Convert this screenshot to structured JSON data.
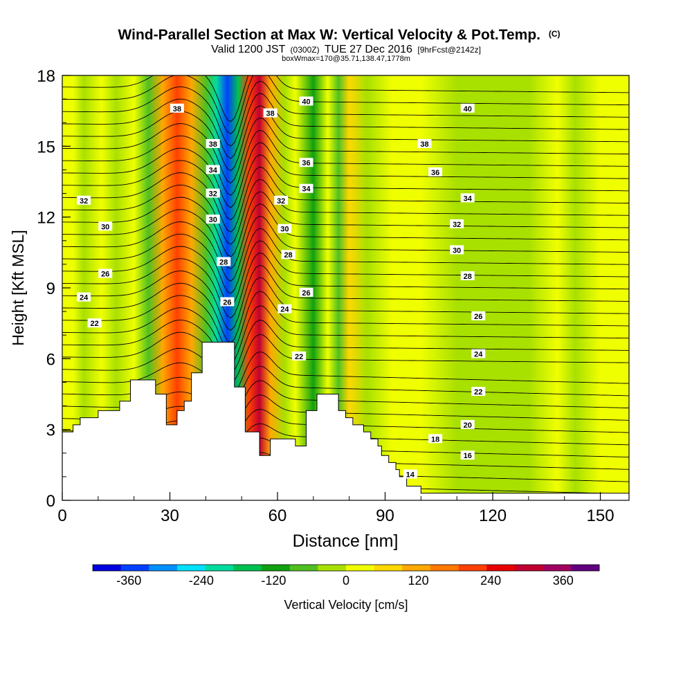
{
  "header": {
    "title": "Wind-Parallel Section at Max W: Vertical Velocity & Pot.Temp.",
    "title_suffix": "(C)",
    "valid_main": "Valid 1200 JST",
    "valid_utc": "(0300Z)",
    "valid_date": "TUE 27 Dec 2016",
    "valid_fcst": "[9hrFcst@2142z]",
    "box_info": "boxWmax=170@35.71,138.47,1778m"
  },
  "chart_data": {
    "type": "heatmap",
    "xlabel": "Distance [nm]",
    "ylabel": "Height [Kft MSL]",
    "xlim": [
      0,
      158
    ],
    "ylim": [
      0,
      18
    ],
    "x_ticks": [
      0,
      30,
      60,
      90,
      120,
      150
    ],
    "y_ticks": [
      0,
      3,
      6,
      9,
      12,
      15,
      18
    ],
    "colorbar": {
      "label": "Vertical Velocity [cm/s]",
      "ticks": [
        -360,
        -240,
        -120,
        0,
        120,
        240,
        360
      ],
      "colors": [
        "#0000e0",
        "#0040ff",
        "#0090ff",
        "#00e0ff",
        "#00dca0",
        "#00c050",
        "#10a010",
        "#50c020",
        "#a8e000",
        "#f0ff00",
        "#ffd800",
        "#ffa800",
        "#ff7800",
        "#ff4000",
        "#e80000",
        "#c00030",
        "#a00060",
        "#600080"
      ]
    },
    "velocity_columns": [
      {
        "x": 0,
        "w": 40
      },
      {
        "x": 3,
        "w": 30
      },
      {
        "x": 6,
        "w": -30
      },
      {
        "x": 11,
        "w": 20
      },
      {
        "x": 15,
        "w": -40
      },
      {
        "x": 20,
        "w": 40
      },
      {
        "x": 24,
        "w": -50
      },
      {
        "x": 28,
        "w": 120
      },
      {
        "x": 32,
        "w": 200
      },
      {
        "x": 36,
        "w": 130
      },
      {
        "x": 40,
        "w": -60
      },
      {
        "x": 43,
        "w": -190
      },
      {
        "x": 46,
        "w": -360
      },
      {
        "x": 49,
        "w": -150
      },
      {
        "x": 52,
        "w": 220
      },
      {
        "x": 55,
        "w": 280
      },
      {
        "x": 58,
        "w": 120
      },
      {
        "x": 62,
        "w": -40
      },
      {
        "x": 65,
        "w": 40
      },
      {
        "x": 70,
        "w": -120
      },
      {
        "x": 74,
        "w": 10
      },
      {
        "x": 77,
        "w": -60
      },
      {
        "x": 80,
        "w": 60
      },
      {
        "x": 85,
        "w": -30
      },
      {
        "x": 92,
        "w": 20
      },
      {
        "x": 100,
        "w": 10
      },
      {
        "x": 110,
        "w": -10
      },
      {
        "x": 120,
        "w": -20
      },
      {
        "x": 130,
        "w": -20
      },
      {
        "x": 138,
        "w": 10
      },
      {
        "x": 143,
        "w": -30
      },
      {
        "x": 150,
        "w": 30
      },
      {
        "x": 158,
        "w": 20
      }
    ],
    "terrain": [
      {
        "x": 0,
        "h": 2.9
      },
      {
        "x": 3,
        "h": 2.9
      },
      {
        "x": 3,
        "h": 3.2
      },
      {
        "x": 5,
        "h": 3.2
      },
      {
        "x": 5,
        "h": 3.5
      },
      {
        "x": 10,
        "h": 3.5
      },
      {
        "x": 10,
        "h": 3.8
      },
      {
        "x": 16,
        "h": 3.8
      },
      {
        "x": 16,
        "h": 4.2
      },
      {
        "x": 19,
        "h": 4.2
      },
      {
        "x": 19,
        "h": 5.1
      },
      {
        "x": 26,
        "h": 5.1
      },
      {
        "x": 26,
        "h": 4.5
      },
      {
        "x": 29,
        "h": 4.5
      },
      {
        "x": 29,
        "h": 3.2
      },
      {
        "x": 32,
        "h": 3.2
      },
      {
        "x": 32,
        "h": 3.8
      },
      {
        "x": 34,
        "h": 3.8
      },
      {
        "x": 34,
        "h": 4.2
      },
      {
        "x": 36,
        "h": 4.2
      },
      {
        "x": 36,
        "h": 5.4
      },
      {
        "x": 39,
        "h": 5.4
      },
      {
        "x": 39,
        "h": 6.7
      },
      {
        "x": 48,
        "h": 6.7
      },
      {
        "x": 48,
        "h": 4.8
      },
      {
        "x": 51,
        "h": 4.8
      },
      {
        "x": 51,
        "h": 2.9
      },
      {
        "x": 55,
        "h": 2.9
      },
      {
        "x": 55,
        "h": 1.9
      },
      {
        "x": 58,
        "h": 1.9
      },
      {
        "x": 58,
        "h": 2.6
      },
      {
        "x": 65,
        "h": 2.6
      },
      {
        "x": 65,
        "h": 2.3
      },
      {
        "x": 68,
        "h": 2.3
      },
      {
        "x": 68,
        "h": 3.8
      },
      {
        "x": 71,
        "h": 3.8
      },
      {
        "x": 71,
        "h": 4.5
      },
      {
        "x": 77,
        "h": 4.5
      },
      {
        "x": 77,
        "h": 3.8
      },
      {
        "x": 79,
        "h": 3.8
      },
      {
        "x": 79,
        "h": 3.5
      },
      {
        "x": 81,
        "h": 3.5
      },
      {
        "x": 81,
        "h": 3.2
      },
      {
        "x": 84,
        "h": 3.2
      },
      {
        "x": 84,
        "h": 2.9
      },
      {
        "x": 86,
        "h": 2.9
      },
      {
        "x": 86,
        "h": 2.6
      },
      {
        "x": 88,
        "h": 2.6
      },
      {
        "x": 88,
        "h": 2.3
      },
      {
        "x": 89,
        "h": 2.3
      },
      {
        "x": 89,
        "h": 1.9
      },
      {
        "x": 91,
        "h": 1.9
      },
      {
        "x": 91,
        "h": 1.6
      },
      {
        "x": 93,
        "h": 1.6
      },
      {
        "x": 93,
        "h": 1.3
      },
      {
        "x": 94,
        "h": 1.3
      },
      {
        "x": 94,
        "h": 1.0
      },
      {
        "x": 96,
        "h": 1.0
      },
      {
        "x": 96,
        "h": 0.6
      },
      {
        "x": 100,
        "h": 0.6
      },
      {
        "x": 100,
        "h": 0.3
      },
      {
        "x": 158,
        "h": 0.3
      }
    ],
    "isentrope_labels": [
      {
        "text": "38",
        "x": 32,
        "y": 16.6
      },
      {
        "text": "38",
        "x": 58,
        "y": 16.4
      },
      {
        "text": "40",
        "x": 68,
        "y": 16.9
      },
      {
        "text": "40",
        "x": 113,
        "y": 16.6
      },
      {
        "text": "38",
        "x": 42,
        "y": 15.1
      },
      {
        "text": "38",
        "x": 101,
        "y": 15.1
      },
      {
        "text": "36",
        "x": 68,
        "y": 14.3
      },
      {
        "text": "36",
        "x": 104,
        "y": 13.9
      },
      {
        "text": "34",
        "x": 42,
        "y": 14.0
      },
      {
        "text": "34",
        "x": 68,
        "y": 13.2
      },
      {
        "text": "34",
        "x": 113,
        "y": 12.8
      },
      {
        "text": "32",
        "x": 6,
        "y": 12.7
      },
      {
        "text": "32",
        "x": 42,
        "y": 13.0
      },
      {
        "text": "32",
        "x": 61,
        "y": 12.7
      },
      {
        "text": "32",
        "x": 110,
        "y": 11.7
      },
      {
        "text": "30",
        "x": 12,
        "y": 11.6
      },
      {
        "text": "30",
        "x": 42,
        "y": 11.9
      },
      {
        "text": "30",
        "x": 62,
        "y": 11.5
      },
      {
        "text": "30",
        "x": 110,
        "y": 10.6
      },
      {
        "text": "28",
        "x": 45,
        "y": 10.1
      },
      {
        "text": "28",
        "x": 63,
        "y": 10.4
      },
      {
        "text": "28",
        "x": 113,
        "y": 9.5
      },
      {
        "text": "26",
        "x": 12,
        "y": 9.6
      },
      {
        "text": "26",
        "x": 46,
        "y": 8.4
      },
      {
        "text": "26",
        "x": 68,
        "y": 8.8
      },
      {
        "text": "26",
        "x": 116,
        "y": 7.8
      },
      {
        "text": "24",
        "x": 6,
        "y": 8.6
      },
      {
        "text": "24",
        "x": 62,
        "y": 8.1
      },
      {
        "text": "24",
        "x": 116,
        "y": 6.2
      },
      {
        "text": "22",
        "x": 9,
        "y": 7.5
      },
      {
        "text": "22",
        "x": 66,
        "y": 6.1
      },
      {
        "text": "22",
        "x": 116,
        "y": 4.6
      },
      {
        "text": "20",
        "x": 113,
        "y": 3.2
      },
      {
        "text": "18",
        "x": 104,
        "y": 2.6
      },
      {
        "text": "16",
        "x": 113,
        "y": 1.9
      },
      {
        "text": "14",
        "x": 97,
        "y": 1.1
      }
    ]
  }
}
